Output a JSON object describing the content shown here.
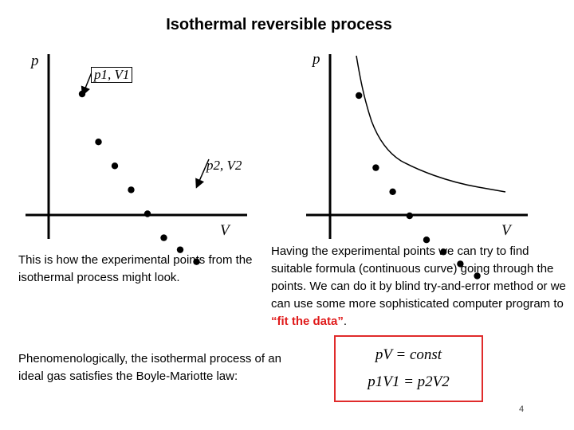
{
  "slide": {
    "title": "Isothermal reversible process",
    "page_number": "4"
  },
  "left_plot": {
    "y_axis_label": "p",
    "x_axis_label": "V",
    "point1_label": "p1, V1",
    "point2_label": "p2, V2",
    "points": [
      [
        0,
        10
      ],
      [
        1,
        8
      ],
      [
        2,
        7
      ],
      [
        3,
        6
      ],
      [
        4,
        5
      ],
      [
        5,
        4
      ],
      [
        6,
        3.5
      ],
      [
        7,
        3
      ]
    ]
  },
  "right_plot": {
    "y_axis_label": "p",
    "x_axis_label": "V",
    "points": [
      [
        1,
        10
      ],
      [
        2,
        7
      ],
      [
        3,
        6
      ],
      [
        4,
        5
      ],
      [
        5,
        4
      ],
      [
        6,
        3.5
      ],
      [
        7,
        3
      ],
      [
        8,
        2.5
      ]
    ]
  },
  "captions": {
    "left": "This is how the experimental points from the isothermal process might look.",
    "right_before": "Having the experimental points we can try to find suitable formula (continuous curve) going through the points. We can do it by blind try-and-error method or we can use some more sophisticated computer program to ",
    "right_highlight": "“fit the data”",
    "right_after": ".",
    "bottom": "Phenomenologically, the isothermal process of an ideal gas satisfies the Boyle-Mariotte law:"
  },
  "equations": {
    "line1": "pV = const",
    "line2": "p1V1 = p2V2"
  },
  "colors": {
    "accent": "#e01a1a",
    "box_border": "#e02b2b"
  }
}
